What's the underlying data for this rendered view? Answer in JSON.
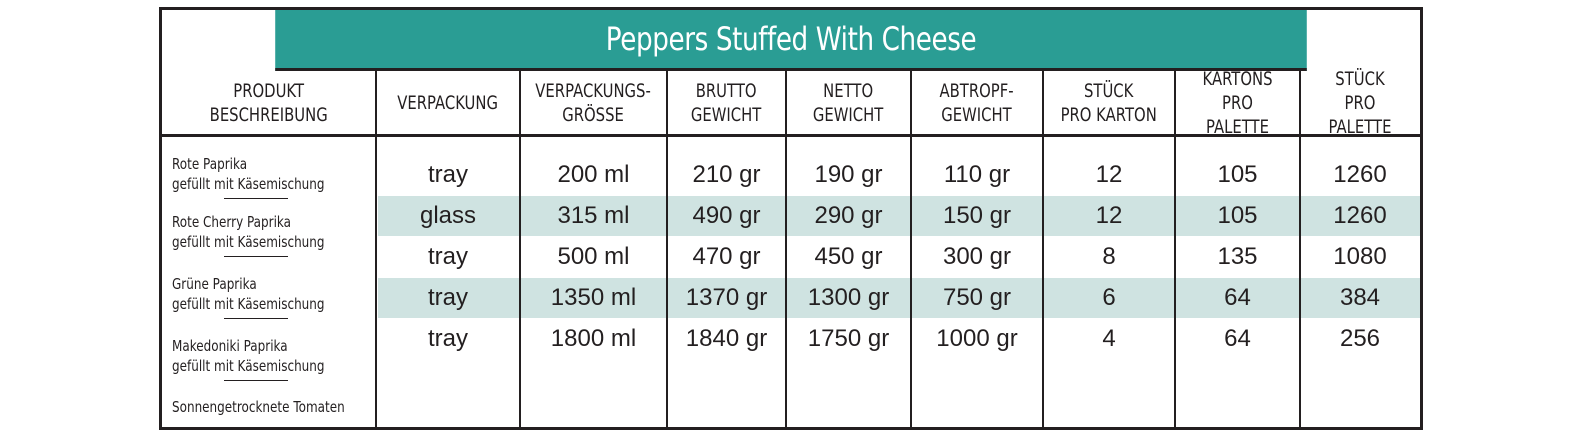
{
  "title": "Peppers Stuffed With Cheese",
  "headers": [
    "PRODUKT\nBESCHREIBUNG",
    "VERPACKUNG",
    "VERPACKUNGS-\nGRÖSSE",
    "BRUTTO\nGEWICHT",
    "NETTO\nGEWICHT",
    "ABTROPF-\nGEWICHT",
    "STÜCK\nPRO KARTON",
    "KARTONS\nPRO PALETTE",
    "STÜCK\nPRO PALETTE"
  ],
  "products": [
    [
      "Rote Paprika",
      "gefüllt mit Käsemischung"
    ],
    [
      "Rote Cherry Paprika",
      "gefüllt mit Käsemischung"
    ],
    [
      "Grüne Paprika",
      "gefüllt mit Käsemischung"
    ],
    [
      "Makedoniki Paprika",
      "gefüllt mit Käsemischung"
    ],
    [
      "Sonnengetrocknete Tomaten"
    ]
  ],
  "rows": [
    [
      "tray",
      "200 ml",
      "210 gr",
      "190 gr",
      "110 gr",
      "12",
      "105",
      "1260"
    ],
    [
      "glass",
      "315 ml",
      "490 gr",
      "290 gr",
      "150 gr",
      "12",
      "105",
      "1260"
    ],
    [
      "tray",
      "500 ml",
      "470 gr",
      "450 gr",
      "300 gr",
      "8",
      "135",
      "1080"
    ],
    [
      "tray",
      "1350 ml",
      "1370 gr",
      "1300 gr",
      "750 gr",
      "6",
      "64",
      "384"
    ],
    [
      "tray",
      "1800 ml",
      "1840 gr",
      "1750 gr",
      "1000 gr",
      "4",
      "64",
      "256"
    ]
  ],
  "colors": {
    "header_bg": "#2a9d94",
    "band_bg": "#cfe3e1",
    "border": "#231f20"
  }
}
